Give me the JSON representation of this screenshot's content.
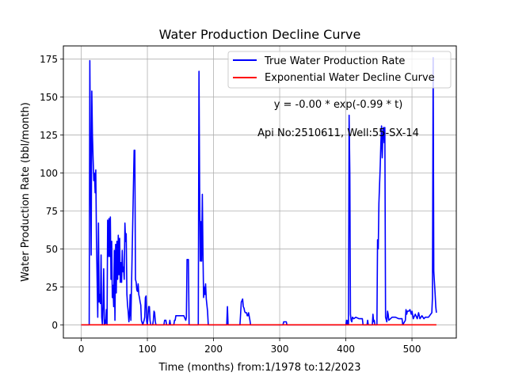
{
  "chart_data": {
    "type": "line",
    "title": "Water Production Decline Curve",
    "xlabel": "Time (months) from:1/1978 to:12/2023",
    "ylabel": "Water Production Rate (bbl/month)",
    "xlim": [
      -27,
      567
    ],
    "ylim": [
      -8.7,
      183.7
    ],
    "xticks": [
      0,
      100,
      200,
      300,
      400,
      500
    ],
    "yticks": [
      0,
      25,
      50,
      75,
      100,
      125,
      150,
      175
    ],
    "grid": true,
    "legend_position": "top-right",
    "annotations": [
      {
        "text": "y = -0.00 * exp(-0.99 * t)",
        "x": 427,
        "y": 145
      },
      {
        "text": "Api No:2510611, Well:55-SX-14",
        "x": 427,
        "y": 126
      }
    ],
    "series": [
      {
        "name": "True Water Production Rate",
        "color": "#0000ff",
        "style": "line",
        "points": [
          [
            0,
            0
          ],
          [
            12,
            0
          ],
          [
            13,
            174
          ],
          [
            14,
            110
          ],
          [
            15,
            46
          ],
          [
            16,
            154
          ],
          [
            17,
            125
          ],
          [
            18,
            108
          ],
          [
            19,
            95
          ],
          [
            20,
            100
          ],
          [
            21,
            87
          ],
          [
            22,
            102
          ],
          [
            23,
            55
          ],
          [
            24,
            30
          ],
          [
            25,
            5
          ],
          [
            26,
            67
          ],
          [
            27,
            15
          ],
          [
            28,
            20
          ],
          [
            29,
            14
          ],
          [
            30,
            46
          ],
          [
            31,
            5
          ],
          [
            32,
            0
          ],
          [
            33,
            14
          ],
          [
            34,
            37
          ],
          [
            35,
            0
          ],
          [
            36,
            3
          ],
          [
            37,
            1
          ],
          [
            38,
            10
          ],
          [
            39,
            0
          ],
          [
            40,
            69
          ],
          [
            41,
            45
          ],
          [
            42,
            70
          ],
          [
            43,
            45
          ],
          [
            44,
            71
          ],
          [
            45,
            30
          ],
          [
            46,
            55
          ],
          [
            47,
            18
          ],
          [
            48,
            26
          ],
          [
            49,
            12
          ],
          [
            50,
            49
          ],
          [
            51,
            3
          ],
          [
            52,
            53
          ],
          [
            53,
            21
          ],
          [
            54,
            55
          ],
          [
            55,
            30
          ],
          [
            56,
            59
          ],
          [
            57,
            33
          ],
          [
            58,
            57
          ],
          [
            59,
            28
          ],
          [
            60,
            41
          ],
          [
            61,
            28
          ],
          [
            62,
            49
          ],
          [
            63,
            35
          ],
          [
            64,
            38
          ],
          [
            65,
            30
          ],
          [
            66,
            67
          ],
          [
            67,
            55
          ],
          [
            68,
            60
          ],
          [
            69,
            20
          ],
          [
            70,
            13
          ],
          [
            71,
            9
          ],
          [
            72,
            2
          ],
          [
            73,
            7
          ],
          [
            74,
            20
          ],
          [
            75,
            3
          ],
          [
            80,
            115
          ],
          [
            81,
            115
          ],
          [
            82,
            30
          ],
          [
            83,
            28
          ],
          [
            84,
            23
          ],
          [
            85,
            22
          ],
          [
            86,
            27
          ],
          [
            87,
            20
          ],
          [
            88,
            18
          ],
          [
            89,
            15
          ],
          [
            90,
            13
          ],
          [
            91,
            3
          ],
          [
            93,
            0
          ],
          [
            95,
            3
          ],
          [
            96,
            5
          ],
          [
            97,
            18
          ],
          [
            98,
            19
          ],
          [
            99,
            2
          ],
          [
            100,
            0
          ],
          [
            102,
            12
          ],
          [
            103,
            12
          ],
          [
            104,
            3
          ],
          [
            105,
            0
          ],
          [
            108,
            0
          ],
          [
            109,
            3
          ],
          [
            110,
            9
          ],
          [
            111,
            8
          ],
          [
            112,
            2
          ],
          [
            113,
            0
          ],
          [
            125,
            0
          ],
          [
            126,
            3
          ],
          [
            128,
            3
          ],
          [
            129,
            0
          ],
          [
            133,
            0
          ],
          [
            134,
            3
          ],
          [
            135,
            0
          ],
          [
            140,
            0
          ],
          [
            141,
            3
          ],
          [
            142,
            3
          ],
          [
            143,
            6
          ],
          [
            150,
            6
          ],
          [
            155,
            6
          ],
          [
            158,
            3
          ],
          [
            159,
            5
          ],
          [
            160,
            43
          ],
          [
            161,
            43
          ],
          [
            162,
            43
          ],
          [
            163,
            0
          ],
          [
            170,
            0
          ],
          [
            175,
            0
          ],
          [
            177,
            0
          ],
          [
            178,
            167
          ],
          [
            179,
            90
          ],
          [
            180,
            42
          ],
          [
            181,
            68
          ],
          [
            182,
            42
          ],
          [
            183,
            86
          ],
          [
            184,
            48
          ],
          [
            185,
            18
          ],
          [
            186,
            25
          ],
          [
            187,
            20
          ],
          [
            188,
            27
          ],
          [
            189,
            17
          ],
          [
            190,
            13
          ],
          [
            191,
            9
          ],
          [
            192,
            0
          ],
          [
            215,
            0
          ],
          [
            220,
            0
          ],
          [
            221,
            12
          ],
          [
            222,
            0
          ],
          [
            240,
            0
          ],
          [
            241,
            8
          ],
          [
            242,
            15
          ],
          [
            243,
            16
          ],
          [
            244,
            17
          ],
          [
            245,
            12
          ],
          [
            246,
            11
          ],
          [
            247,
            9
          ],
          [
            248,
            8
          ],
          [
            250,
            8
          ],
          [
            251,
            6
          ],
          [
            252,
            6
          ],
          [
            253,
            8
          ],
          [
            255,
            3
          ],
          [
            256,
            0
          ],
          [
            305,
            0
          ],
          [
            306,
            2
          ],
          [
            308,
            2
          ],
          [
            310,
            2
          ],
          [
            311,
            0
          ],
          [
            400,
            0
          ],
          [
            401,
            3
          ],
          [
            402,
            0
          ],
          [
            403,
            3
          ],
          [
            404,
            0
          ],
          [
            405,
            138
          ],
          [
            406,
            100
          ],
          [
            407,
            7
          ],
          [
            408,
            3
          ],
          [
            409,
            2
          ],
          [
            410,
            5
          ],
          [
            412,
            4
          ],
          [
            415,
            5
          ],
          [
            420,
            4
          ],
          [
            425,
            4
          ],
          [
            426,
            0
          ],
          [
            432,
            0
          ],
          [
            433,
            3
          ],
          [
            434,
            0
          ],
          [
            440,
            0
          ],
          [
            441,
            7
          ],
          [
            442,
            2
          ],
          [
            443,
            3
          ],
          [
            444,
            0
          ],
          [
            447,
            0
          ],
          [
            448,
            56
          ],
          [
            449,
            50
          ],
          [
            450,
            80
          ],
          [
            452,
            105
          ],
          [
            453,
            120
          ],
          [
            454,
            131
          ],
          [
            455,
            110
          ],
          [
            456,
            125
          ],
          [
            457,
            130
          ],
          [
            458,
            120
          ],
          [
            459,
            130
          ],
          [
            460,
            5
          ],
          [
            462,
            2
          ],
          [
            463,
            9
          ],
          [
            464,
            7
          ],
          [
            465,
            3
          ],
          [
            470,
            5
          ],
          [
            475,
            5
          ],
          [
            480,
            4
          ],
          [
            485,
            4
          ],
          [
            486,
            0
          ],
          [
            490,
            3
          ],
          [
            491,
            10
          ],
          [
            492,
            7
          ],
          [
            493,
            9
          ],
          [
            495,
            9
          ],
          [
            497,
            10
          ],
          [
            499,
            7
          ],
          [
            500,
            9
          ],
          [
            502,
            4
          ],
          [
            505,
            7
          ],
          [
            508,
            4
          ],
          [
            510,
            8
          ],
          [
            512,
            4
          ],
          [
            515,
            6
          ],
          [
            518,
            4
          ],
          [
            520,
            5
          ],
          [
            525,
            5
          ],
          [
            530,
            8
          ],
          [
            531,
            18
          ],
          [
            532,
            176
          ],
          [
            533,
            35
          ],
          [
            534,
            28
          ],
          [
            535,
            20
          ],
          [
            536,
            12
          ],
          [
            537,
            8
          ]
        ]
      },
      {
        "name": "Exponential Water Decline Curve",
        "color": "#ff0000",
        "style": "line",
        "points": [
          [
            0,
            0
          ],
          [
            537,
            0
          ]
        ]
      }
    ]
  }
}
